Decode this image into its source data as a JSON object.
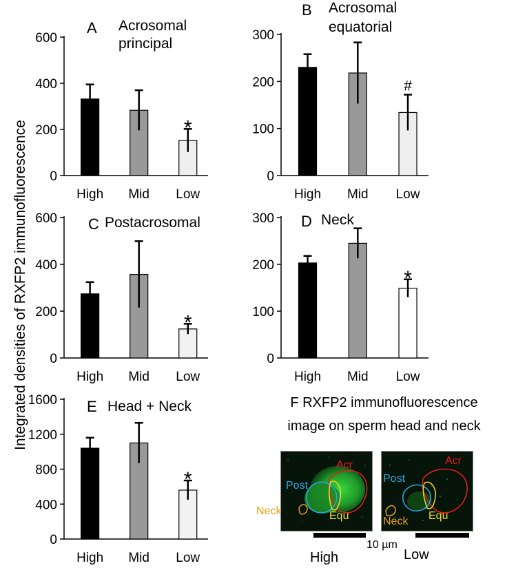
{
  "y_axis_title": "Integrated densities of RXFP2 immunofluorescence",
  "chart_data": [
    {
      "type": "bar",
      "panel": "A",
      "title": "Acrosomal principal",
      "title_lines": [
        "Acrosomal",
        "principal"
      ],
      "categories": [
        "High",
        "Mid",
        "Low"
      ],
      "values": [
        332,
        283,
        152
      ],
      "errors": [
        63,
        87,
        50
      ],
      "marks": [
        "",
        "",
        "*"
      ],
      "ylim": [
        0,
        600
      ],
      "yticks": [
        0,
        200,
        400,
        600
      ],
      "bar_colors": [
        "#000000",
        "#999999",
        "#eeeeee"
      ]
    },
    {
      "type": "bar",
      "panel": "B",
      "title": "Acrosomal equatorial",
      "title_lines": [
        "Acrosomal",
        "equatorial"
      ],
      "categories": [
        "High",
        "Mid",
        "Low"
      ],
      "values": [
        230,
        218,
        134
      ],
      "errors": [
        28,
        65,
        38
      ],
      "marks": [
        "",
        "",
        "#"
      ],
      "ylim": [
        0,
        300
      ],
      "yticks": [
        0,
        100,
        200,
        300
      ],
      "bar_colors": [
        "#000000",
        "#999999",
        "#eeeeee"
      ]
    },
    {
      "type": "bar",
      "panel": "C",
      "title": "Postacrosomal",
      "title_lines": [
        "Postacrosomal"
      ],
      "categories": [
        "High",
        "Mid",
        "Low"
      ],
      "values": [
        274,
        357,
        124
      ],
      "errors": [
        50,
        142,
        22
      ],
      "marks": [
        "",
        "",
        "*"
      ],
      "ylim": [
        0,
        600
      ],
      "yticks": [
        0,
        200,
        400,
        600
      ],
      "bar_colors": [
        "#000000",
        "#999999",
        "#f2f2f2"
      ]
    },
    {
      "type": "bar",
      "panel": "D",
      "title": "Neck",
      "title_lines": [
        "Neck"
      ],
      "categories": [
        "High",
        "Mid",
        "Low"
      ],
      "values": [
        203,
        245,
        149
      ],
      "errors": [
        15,
        32,
        19
      ],
      "marks": [
        "",
        "",
        "*"
      ],
      "ylim": [
        0,
        300
      ],
      "yticks": [
        0,
        100,
        200,
        300
      ],
      "bar_colors": [
        "#000000",
        "#999999",
        "#ffffff"
      ]
    },
    {
      "type": "bar",
      "panel": "E",
      "title": "Head + Neck",
      "title_lines": [
        "Head + Neck"
      ],
      "categories": [
        "High",
        "Mid",
        "Low"
      ],
      "values": [
        1040,
        1100,
        560
      ],
      "errors": [
        120,
        230,
        110
      ],
      "marks": [
        "",
        "",
        "*"
      ],
      "ylim": [
        0,
        1600
      ],
      "yticks": [
        0,
        400,
        800,
        1200,
        1600
      ],
      "bar_colors": [
        "#000000",
        "#999999",
        "#f2f2f2"
      ]
    }
  ],
  "panel_f": {
    "letter": "F",
    "title_line1": "RXFP2 immunofluorescence",
    "title_line2": "image on sperm head and neck",
    "labels": {
      "acr": "Acr",
      "post": "Post",
      "neck": "Neck",
      "equ": "Equ"
    },
    "label_colors": {
      "acr": "#e02020",
      "post": "#2aa6e0",
      "neck": "#e8a010",
      "equ": "#f0e020"
    },
    "scale_bar": "10 µm",
    "image_captions": [
      "High",
      "Low"
    ]
  }
}
